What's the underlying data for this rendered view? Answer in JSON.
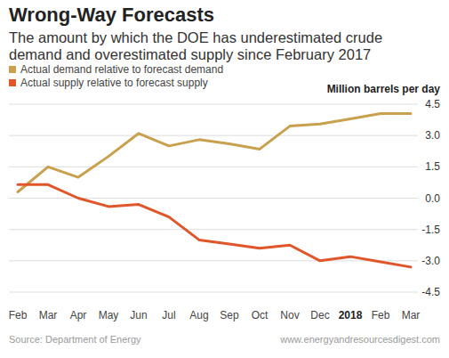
{
  "chart_data": {
    "type": "line",
    "title": "Wrong-Way Forecasts",
    "subtitle": [
      "The amount by which the DOE has underestimated crude",
      "demand and overestimated supply since February 2017"
    ],
    "y_label": "Million barrels per day",
    "annotations": [
      "Source: Department of Energy",
      "www.energyandresourcesdigest.com"
    ],
    "categories": [
      "Feb",
      "Mar",
      "Apr",
      "May",
      "Jun",
      "Jul",
      "Aug",
      "Sep",
      "Oct",
      "Nov",
      "Dec",
      "2018",
      "Feb",
      "Mar"
    ],
    "series": [
      {
        "name": "Actual demand relative to forecast demand",
        "color": "#c9a04e",
        "values": [
          0.3,
          1.5,
          1.0,
          2.0,
          3.1,
          2.5,
          2.8,
          2.6,
          2.35,
          3.45,
          3.55,
          3.8,
          4.05,
          4.05
        ]
      },
      {
        "name": "Actual supply relative to forecast supply",
        "color": "#e0562a",
        "values": [
          0.65,
          0.65,
          0.0,
          -0.4,
          -0.3,
          -0.9,
          -2.0,
          -2.2,
          -2.4,
          -2.25,
          -3.0,
          -2.8,
          -3.05,
          -3.3
        ]
      }
    ],
    "ylim": [
      -4.5,
      4.5
    ],
    "yticks": [
      4.5,
      {
        "value": 3,
        "label": "3.0"
      },
      1.5,
      {
        "value": 0,
        "label": "0.0"
      },
      -1.5,
      {
        "value": -3,
        "label": "-3.0"
      },
      -4.5
    ],
    "grid": true,
    "legend": "top-left"
  }
}
